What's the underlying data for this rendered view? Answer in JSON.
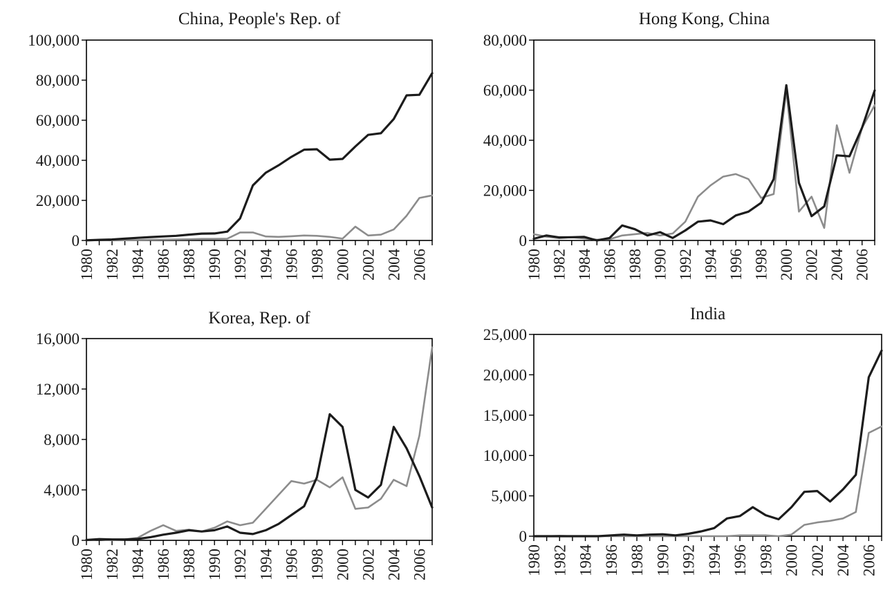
{
  "colors": {
    "series_dark": "#1c1c1c",
    "series_light": "#8c8c8c",
    "axis": "#000000",
    "background": "#ffffff"
  },
  "chart_data": [
    {
      "type": "line",
      "title": "China, People's Rep. of",
      "xlabel": "",
      "ylabel": "",
      "x": [
        1980,
        1981,
        1982,
        1983,
        1984,
        1985,
        1986,
        1987,
        1988,
        1989,
        1990,
        1991,
        1992,
        1993,
        1994,
        1995,
        1996,
        1997,
        1998,
        1999,
        2000,
        2001,
        2002,
        2003,
        2004,
        2005,
        2006,
        2007
      ],
      "x_tick_labels": [
        "1980",
        "1982",
        "1984",
        "1986",
        "1988",
        "1990",
        "1992",
        "1994",
        "1996",
        "1998",
        "2000",
        "2002",
        "2004",
        "2006"
      ],
      "ylim": [
        0,
        100000
      ],
      "y_tick_labels": [
        "0",
        "20,000",
        "40,000",
        "60,000",
        "80,000",
        "100,000"
      ],
      "grid": false,
      "series": [
        {
          "values": [
            60,
            300,
            500,
            900,
            1300,
            1700,
            2000,
            2300,
            2900,
            3400,
            3500,
            4400,
            11000,
            27500,
            33800,
            37500,
            41700,
            45300,
            45500,
            40300,
            40700,
            46900,
            52700,
            53500,
            60600,
            72400,
            72700,
            83500
          ]
        },
        {
          "values": [
            null,
            null,
            0,
            100,
            200,
            300,
            400,
            500,
            600,
            800,
            800,
            900,
            4000,
            4000,
            2000,
            1800,
            2100,
            2500,
            2300,
            1800,
            900,
            6900,
            2500,
            2900,
            5500,
            12300,
            21200,
            22500
          ]
        }
      ]
    },
    {
      "type": "line",
      "title": "Hong Kong, China",
      "xlabel": "",
      "ylabel": "",
      "x": [
        1980,
        1981,
        1982,
        1983,
        1984,
        1985,
        1986,
        1987,
        1988,
        1989,
        1990,
        1991,
        1992,
        1993,
        1994,
        1995,
        1996,
        1997,
        1998,
        1999,
        2000,
        2001,
        2002,
        2003,
        2004,
        2005,
        2006,
        2007
      ],
      "x_tick_labels": [
        "1980",
        "1982",
        "1984",
        "1986",
        "1988",
        "1990",
        "1992",
        "1994",
        "1996",
        "1998",
        "2000",
        "2002",
        "2004",
        "2006"
      ],
      "ylim": [
        0,
        80000
      ],
      "y_tick_labels": [
        "0",
        "20,000",
        "40,000",
        "60,000",
        "80,000"
      ],
      "grid": false,
      "series": [
        {
          "values": [
            700,
            2000,
            1200,
            1300,
            1400,
            0,
            1000,
            6000,
            4500,
            2000,
            3300,
            1000,
            4000,
            7500,
            8000,
            6500,
            10000,
            11500,
            15000,
            24500,
            62000,
            23000,
            9700,
            13600,
            34000,
            33600,
            45000,
            59900
          ]
        },
        {
          "values": [
            2500,
            1500,
            900,
            1300,
            800,
            300,
            500,
            2000,
            2500,
            3000,
            2000,
            2800,
            7500,
            17500,
            22000,
            25500,
            26500,
            24500,
            17000,
            18500,
            60000,
            11500,
            17500,
            5000,
            46000,
            27000,
            45000,
            54000
          ]
        }
      ]
    },
    {
      "type": "line",
      "title": "Korea, Rep. of",
      "xlabel": "",
      "ylabel": "",
      "x": [
        1980,
        1981,
        1982,
        1983,
        1984,
        1985,
        1986,
        1987,
        1988,
        1989,
        1990,
        1991,
        1992,
        1993,
        1994,
        1995,
        1996,
        1997,
        1998,
        1999,
        2000,
        2001,
        2002,
        2003,
        2004,
        2005,
        2006,
        2007
      ],
      "x_tick_labels": [
        "1980",
        "1982",
        "1984",
        "1986",
        "1988",
        "1990",
        "1992",
        "1994",
        "1996",
        "1998",
        "2000",
        "2002",
        "2004",
        "2006"
      ],
      "ylim": [
        0,
        16000
      ],
      "y_tick_labels": [
        "0",
        "4,000",
        "8,000",
        "12,000",
        "16,000"
      ],
      "grid": false,
      "series": [
        {
          "values": [
            30,
            100,
            70,
            70,
            110,
            250,
            450,
            600,
            800,
            700,
            800,
            1100,
            600,
            500,
            800,
            1300,
            2000,
            2700,
            5000,
            10000,
            9000,
            4000,
            3400,
            4400,
            9000,
            7300,
            5100,
            2600
          ]
        },
        {
          "values": [
            30,
            80,
            0,
            70,
            200,
            750,
            1200,
            750,
            850,
            700,
            1000,
            1500,
            1200,
            1400,
            2500,
            3600,
            4700,
            4500,
            4800,
            4200,
            5000,
            2500,
            2600,
            3300,
            4800,
            4300,
            8300,
            15300
          ]
        }
      ]
    },
    {
      "type": "line",
      "title": "India",
      "xlabel": "",
      "ylabel": "",
      "x": [
        1980,
        1981,
        1982,
        1983,
        1984,
        1985,
        1986,
        1987,
        1988,
        1989,
        1990,
        1991,
        1992,
        1993,
        1994,
        1995,
        1996,
        1997,
        1998,
        1999,
        2000,
        2001,
        2002,
        2003,
        2004,
        2005,
        2006,
        2007
      ],
      "x_tick_labels": [
        "1980",
        "1982",
        "1984",
        "1986",
        "1988",
        "1990",
        "1992",
        "1994",
        "1996",
        "1998",
        "2000",
        "2002",
        "2004",
        "2006"
      ],
      "ylim": [
        0,
        25000
      ],
      "y_tick_labels": [
        "0",
        "5,000",
        "10,000",
        "15,000",
        "20,000",
        "25,000"
      ],
      "grid": false,
      "series": [
        {
          "values": [
            0,
            0,
            0,
            0,
            0,
            0,
            100,
            200,
            100,
            200,
            240,
            100,
            300,
            600,
            1000,
            2200,
            2500,
            3600,
            2600,
            2100,
            3600,
            5500,
            5600,
            4300,
            5800,
            7600,
            19700,
            23000
          ]
        },
        {
          "values": [
            0,
            0,
            50,
            0,
            0,
            0,
            0,
            0,
            0,
            0,
            0,
            0,
            0,
            0,
            0,
            0,
            100,
            100,
            100,
            0,
            200,
            1400,
            1700,
            1900,
            2200,
            3000,
            12800,
            13600
          ]
        }
      ]
    }
  ]
}
